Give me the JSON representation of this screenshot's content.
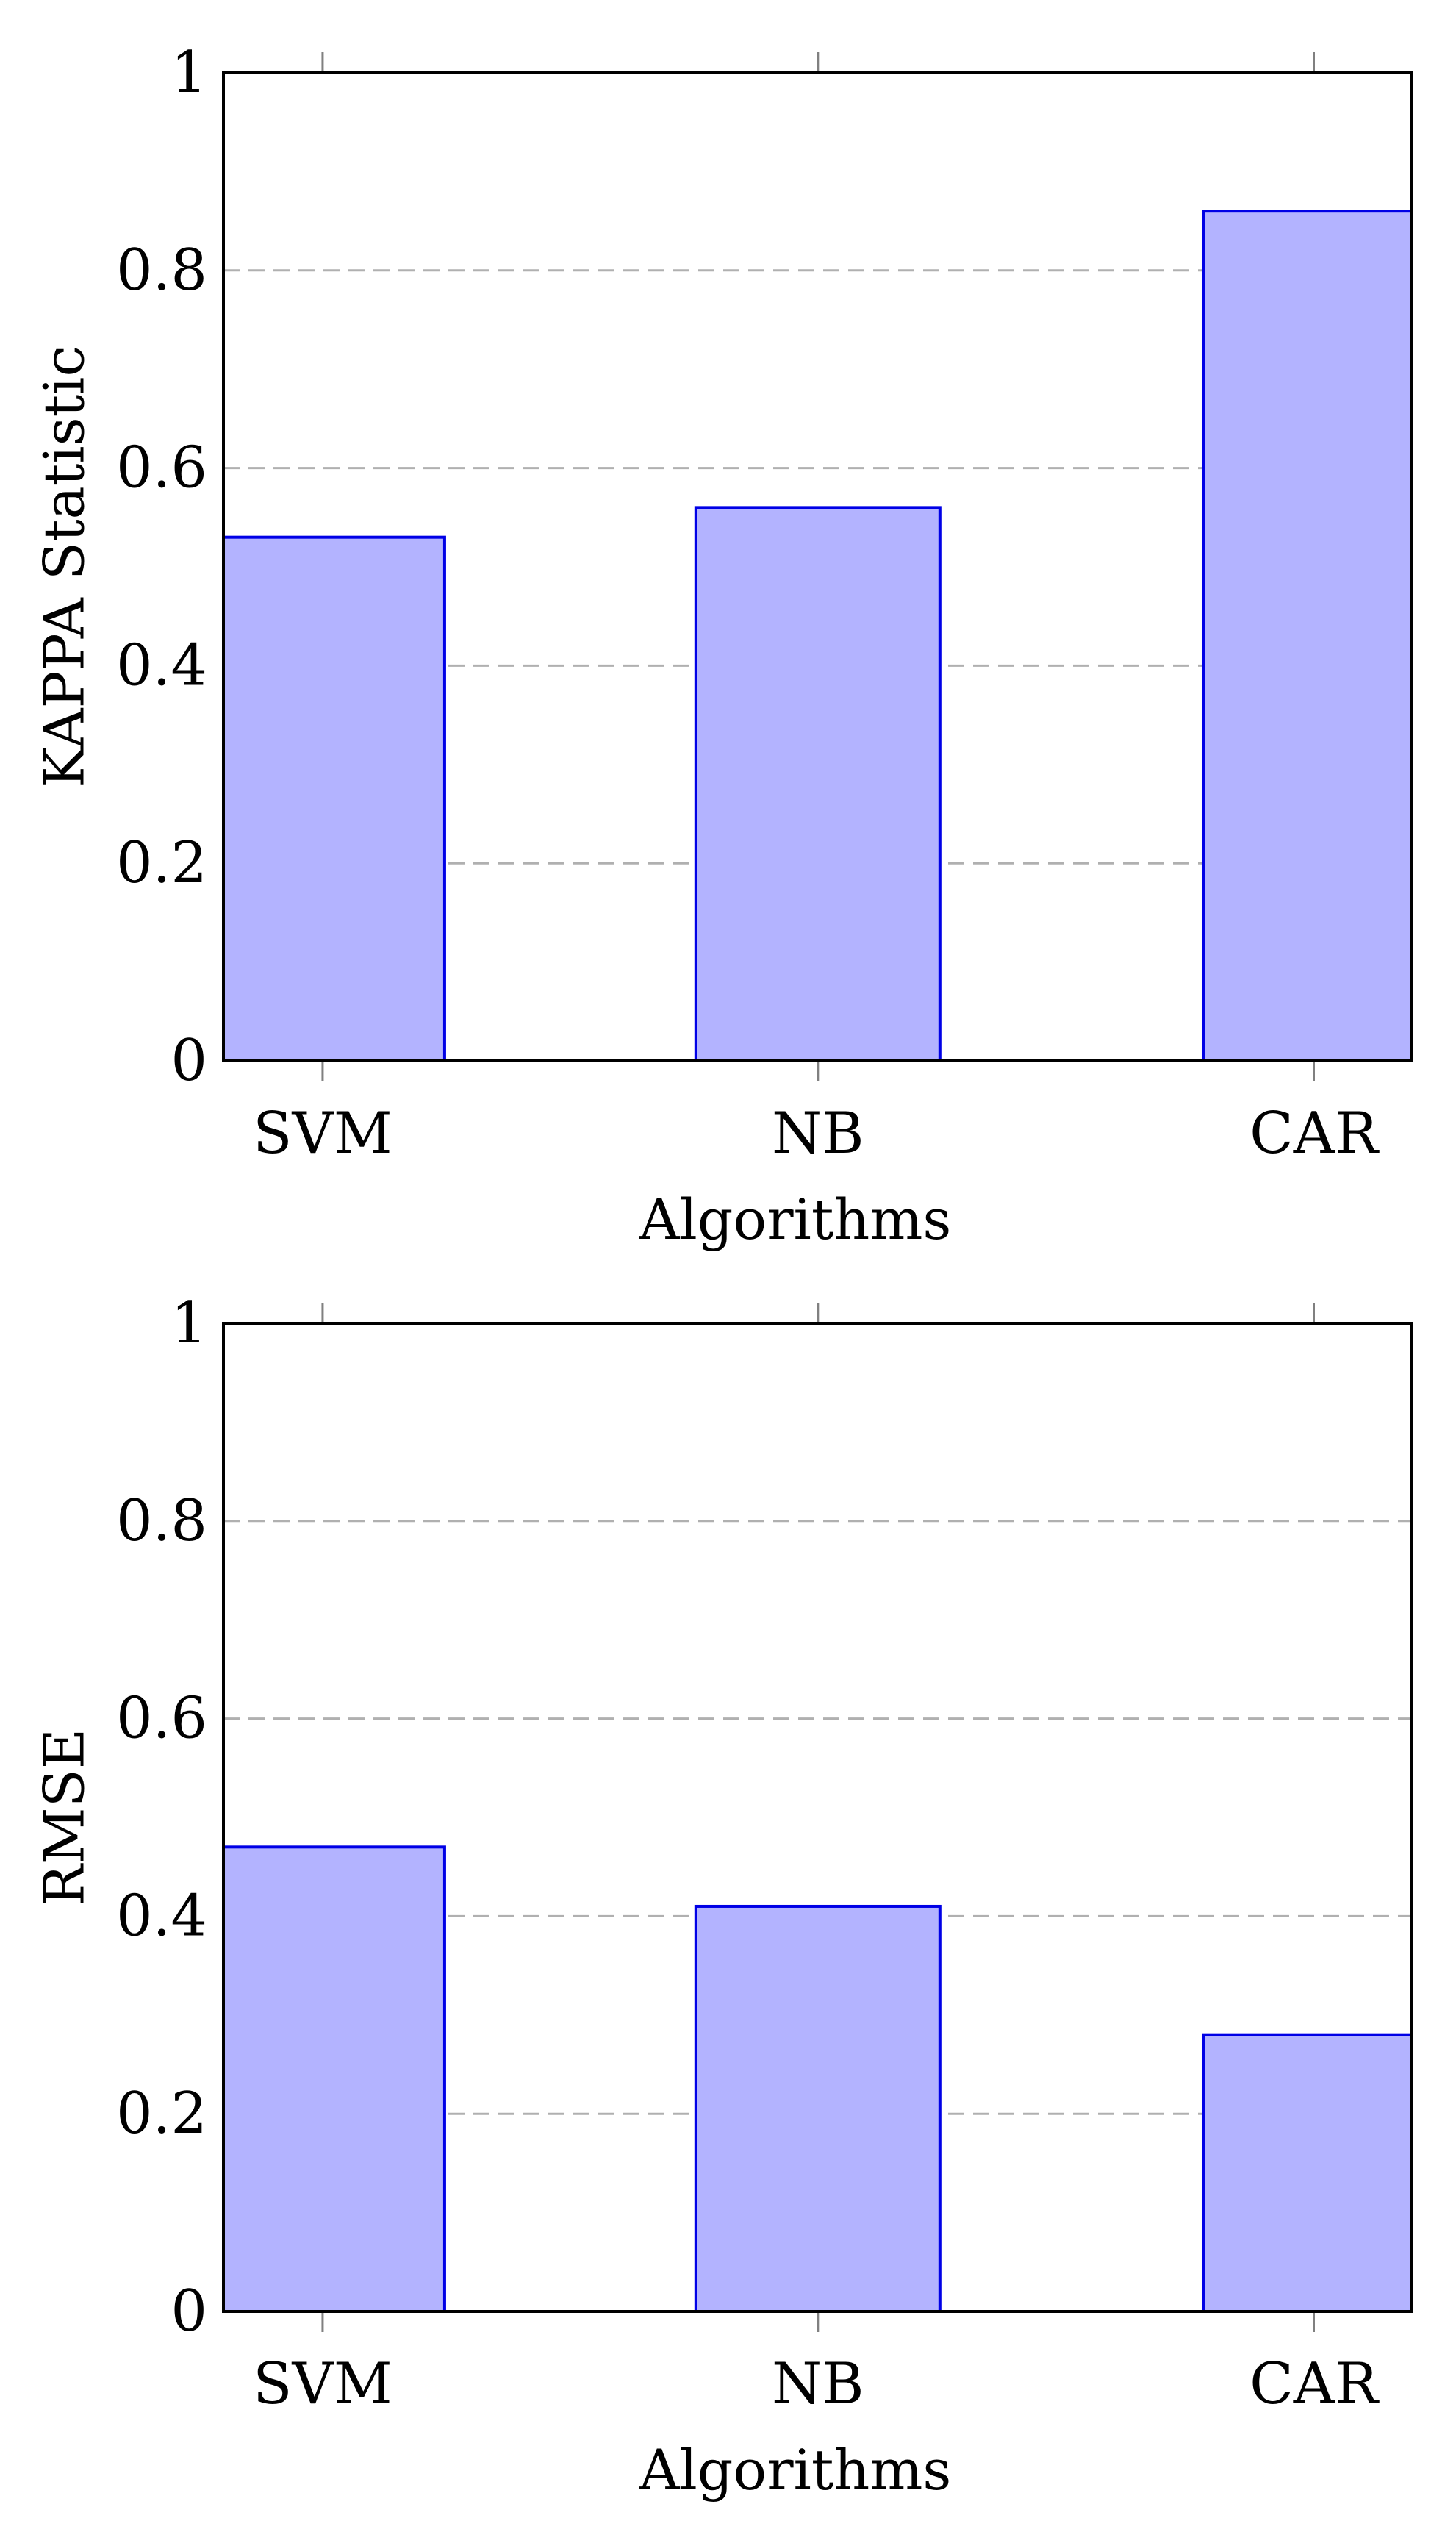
{
  "chart_data": [
    {
      "type": "bar",
      "categories": [
        "SVM",
        "NB",
        "CAR"
      ],
      "values": [
        0.53,
        0.56,
        0.86
      ],
      "xlabel": "Algorithms",
      "ylabel": "KAPPA Statistic",
      "ylim": [
        0,
        1
      ],
      "yticks": [
        "0",
        "0.2",
        "0.4",
        "0.6",
        "0.8",
        "1"
      ],
      "grid": "horizontal dashed",
      "bar_fill": "#b3b3ff",
      "bar_stroke": "#0000e6"
    },
    {
      "type": "bar",
      "categories": [
        "SVM",
        "NB",
        "CAR"
      ],
      "values": [
        0.47,
        0.41,
        0.28
      ],
      "xlabel": "Algorithms",
      "ylabel": "RMSE",
      "ylim": [
        0,
        1
      ],
      "yticks": [
        "0",
        "0.2",
        "0.4",
        "0.6",
        "0.8",
        "1"
      ],
      "grid": "horizontal dashed",
      "bar_fill": "#b3b3ff",
      "bar_stroke": "#0000e6"
    }
  ]
}
